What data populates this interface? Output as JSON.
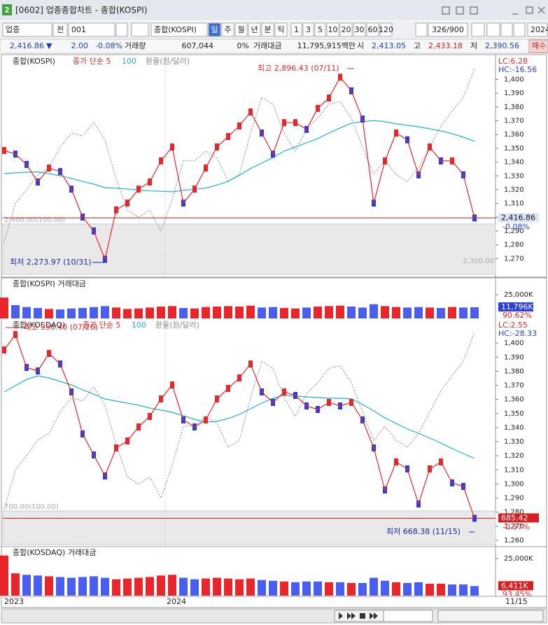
{
  "window": {
    "badge": "2",
    "title": "[0602] 업종종합차트 - 종합(KOSPI)"
  },
  "toolbar": {
    "market": "업종",
    "scope": "전",
    "code": "001",
    "name": "종합(KOSPI)",
    "periods": [
      "일",
      "주",
      "월",
      "년",
      "분",
      "틱"
    ],
    "intervals": [
      "1",
      "3",
      "5",
      "10",
      "20",
      "30",
      "60",
      "120"
    ],
    "count": "326/900",
    "year": "2024"
  },
  "quote": {
    "price": "2,416.86",
    "arrow": "▼",
    "change": "2.00",
    "pct": "-0.08%",
    "volume_label": "거래량",
    "volume": "607,044",
    "volume_pct": "0%",
    "amount_label": "거래대금",
    "amount": "11,795,915백만",
    "open_label": "시",
    "open": "2,413.05",
    "high_label": "고",
    "high": "2,433.18",
    "low_label": "저",
    "low": "2,390.56",
    "buy": "매수"
  },
  "x_axis": {
    "labels": [
      "2023",
      "2024"
    ],
    "last": "11/15"
  },
  "chart_data": [
    {
      "type": "candle",
      "ma_label": "종가 단순 5",
      "series": [
        {
          "name": "종합(KOSPI)",
          "color": "#e8262b",
          "values": [
            2644,
            2632,
            2597,
            2538,
            2585,
            2573,
            2514,
            2420,
            2373,
            2278,
            2444,
            2467,
            2514,
            2538,
            2609,
            2656,
            2467,
            2514,
            2585,
            2656,
            2691,
            2727,
            2774,
            2703,
            2632,
            2738,
            2738,
            2715,
            2786,
            2821,
            2891,
            2845,
            2750,
            2467,
            2609,
            2703,
            2680,
            2562,
            2656,
            2609,
            2609,
            2562,
            2416.86
          ]
        },
        {
          "name": "100",
          "color": "#1fb4c8",
          "values": [
            2566,
            2569,
            2571,
            2572,
            2566,
            2559,
            2550,
            2540,
            2531,
            2519,
            2517,
            2514,
            2511,
            2508,
            2507,
            2505,
            2510,
            2514,
            2517,
            2528,
            2540,
            2561,
            2583,
            2602,
            2620,
            2642,
            2656,
            2670,
            2684,
            2703,
            2720,
            2736,
            2741,
            2745,
            2741,
            2734,
            2729,
            2724,
            2717,
            2710,
            2701,
            2689,
            2675
          ]
        },
        {
          "name": "환율(원/달러)",
          "color": "#8a8a8a",
          "axis": "y2",
          "values": [
            1282,
            1310,
            1320,
            1331,
            1336,
            1351,
            1361,
            1359,
            1369,
            1356,
            1328,
            1305,
            1300,
            1305,
            1290,
            1313,
            1341,
            1341,
            1348,
            1343,
            1326,
            1331,
            1361,
            1387,
            1382,
            1361,
            1348,
            1364,
            1372,
            1382,
            1384,
            1372,
            1351,
            1331,
            1341,
            1331,
            1326,
            1336,
            1351,
            1366,
            1377,
            1387,
            1408
          ]
        }
      ],
      "y2lim": [
        1257,
        1417
      ],
      "y2ticks": [
        {
          "value": 1270,
          "label": "1,270"
        },
        {
          "value": 1280,
          "label": "1,280"
        },
        {
          "value": 1290,
          "label": "1,290"
        },
        {
          "value": 1300,
          "label": "1,300"
        },
        {
          "value": 1310,
          "label": "1,310"
        },
        {
          "value": 1320,
          "label": "1,320"
        },
        {
          "value": 1330,
          "label": "1,330"
        },
        {
          "value": 1340,
          "label": "1,340"
        },
        {
          "value": 1350,
          "label": "1,350"
        },
        {
          "value": 1360,
          "label": "1,360"
        },
        {
          "value": 1370,
          "label": "1,370"
        },
        {
          "value": 1380,
          "label": "1,380"
        },
        {
          "value": 1390,
          "label": "1,390"
        },
        {
          "value": 1400,
          "label": "1,400"
        }
      ],
      "high": {
        "value": 2896.43,
        "label": "최고 2,896.43 (07/11)"
      },
      "low": {
        "value": 2273.97,
        "label": "최저 2,273.97 (10/31)"
      },
      "last": {
        "value": 2416.86,
        "label": "2,416.86"
      },
      "last_pct": "-0.08%",
      "lc": "LC:6.28",
      "hc": "HC:-16.56",
      "ref_label": "2,400.00(100.00)",
      "floor_label": "2,300.00"
    },
    {
      "type": "volume",
      "title": "종합(KOSPI) 거래대금",
      "values": [
        22000,
        14000,
        12000,
        11000,
        10000,
        9500,
        10500,
        11000,
        12000,
        13000,
        11500,
        10000,
        10500,
        11500,
        12500,
        13000,
        11000,
        10500,
        12000,
        12500,
        13000,
        12500,
        13500,
        11500,
        12000,
        11000,
        10500,
        11500,
        12500,
        13000,
        13500,
        12500,
        11500,
        15000,
        13000,
        12000,
        11500,
        12000,
        11500,
        11000,
        12000,
        11500,
        11796
      ],
      "ylim": [
        0,
        42000
      ],
      "yticks": [
        {
          "value": 25000,
          "label": "25,000K"
        }
      ],
      "last_label": "11,796K",
      "last_pct": "90.62%"
    },
    {
      "type": "candle",
      "ma_label": "종가 단순 5",
      "series": [
        {
          "name": "종합(KOSDAQ)",
          "color": "#e8262b",
          "values": [
            933.7,
            956.4,
            907.9,
            902.7,
            928.5,
            913.0,
            871.8,
            809.8,
            778.8,
            747.9,
            789.2,
            799.5,
            820.1,
            835.6,
            861.4,
            882.1,
            830.5,
            820.1,
            830.5,
            861.4,
            876.9,
            892.4,
            913.0,
            871.8,
            856.3,
            871.8,
            866.6,
            851.1,
            845.9,
            856.3,
            851.1,
            856.3,
            830.5,
            789.2,
            727.2,
            768.5,
            758.2,
            706.6,
            758.2,
            768.5,
            737.6,
            732.4,
            685.42
          ]
        },
        {
          "name": "100",
          "color": "#1fb4c8",
          "values": [
            871.8,
            881.0,
            890.3,
            895.5,
            892.4,
            887.2,
            882.1,
            874.8,
            868.6,
            861.4,
            858.3,
            855.2,
            852.1,
            848.0,
            844.9,
            841.8,
            836.7,
            831.5,
            827.3,
            828.4,
            832.5,
            838.7,
            847.0,
            855.2,
            862.5,
            866.6,
            865.6,
            864.5,
            863.5,
            862.5,
            862.5,
            861.4,
            853.2,
            843.9,
            833.6,
            825.3,
            817.0,
            810.8,
            803.6,
            796.4,
            788.1,
            780.9,
            773.7
          ]
        },
        {
          "name": "환율(원/달러)",
          "color": "#8a8a8a",
          "axis": "y2",
          "values": [
            1282,
            1310,
            1320,
            1331,
            1336,
            1351,
            1361,
            1359,
            1369,
            1356,
            1328,
            1305,
            1300,
            1305,
            1290,
            1313,
            1341,
            1341,
            1348,
            1343,
            1326,
            1331,
            1361,
            1387,
            1382,
            1361,
            1348,
            1364,
            1372,
            1382,
            1384,
            1372,
            1351,
            1331,
            1341,
            1331,
            1326,
            1336,
            1351,
            1366,
            1377,
            1387,
            1408
          ]
        }
      ],
      "y2lim": [
        1256,
        1416
      ],
      "y2ticks": [
        {
          "value": 1260,
          "label": "1,260"
        },
        {
          "value": 1270,
          "label": "1,270"
        },
        {
          "value": 1280,
          "label": "1,280"
        },
        {
          "value": 1290,
          "label": "1,290"
        },
        {
          "value": 1300,
          "label": "1,300"
        },
        {
          "value": 1310,
          "label": "1,310"
        },
        {
          "value": 1320,
          "label": "1,320"
        },
        {
          "value": 1330,
          "label": "1,330"
        },
        {
          "value": 1340,
          "label": "1,340"
        },
        {
          "value": 1350,
          "label": "1,350"
        },
        {
          "value": 1360,
          "label": "1,360"
        },
        {
          "value": 1370,
          "label": "1,370"
        },
        {
          "value": 1380,
          "label": "1,380"
        },
        {
          "value": 1390,
          "label": "1,390"
        },
        {
          "value": 1400,
          "label": "1,400"
        }
      ],
      "high": {
        "value": 956.4,
        "label": "최고 956.40 (07/26)"
      },
      "low": {
        "value": 668.38,
        "label": "최저 668.38 (11/15)"
      },
      "last": {
        "value": 685.42,
        "label": "685.42"
      },
      "last_pct": "-0.57%",
      "lc": "LC:2.55",
      "hc": "HC:-28.33",
      "ref_label": "700.00(100.00)"
    },
    {
      "type": "volume",
      "title": "종합(KOSDAQ) 거래대금",
      "values": [
        27000,
        15000,
        14000,
        13500,
        13000,
        12500,
        12000,
        12500,
        13000,
        12000,
        11000,
        11500,
        12000,
        12500,
        13500,
        14000,
        12000,
        11000,
        11500,
        12000,
        11500,
        11000,
        11500,
        10500,
        10000,
        9500,
        9000,
        9500,
        9500,
        9000,
        9000,
        8500,
        8500,
        12000,
        10000,
        9000,
        8500,
        9000,
        8000,
        8000,
        7500,
        7500,
        6411
      ],
      "ylim": [
        0,
        32500
      ],
      "yticks": [
        {
          "value": 25000,
          "label": "25,000K"
        }
      ],
      "last_label": "6,411K",
      "last_pct": "93.45%"
    }
  ]
}
